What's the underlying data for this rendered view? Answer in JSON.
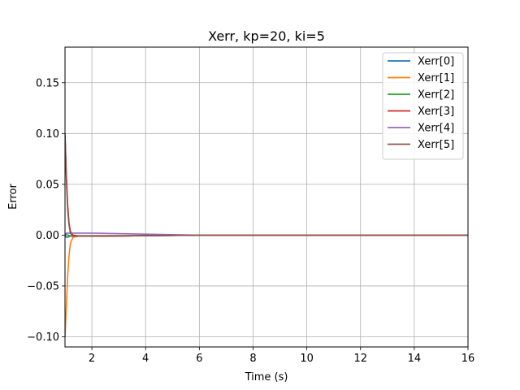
{
  "chart_data": {
    "type": "line",
    "title": "Xerr, kp=20, ki=5",
    "xlabel": "Time (s)",
    "ylabel": "Error",
    "xlim": [
      1,
      16
    ],
    "ylim": [
      -0.11,
      0.185
    ],
    "xticks": [
      2,
      4,
      6,
      8,
      10,
      12,
      14,
      16
    ],
    "xtick_labels": [
      "2",
      "4",
      "6",
      "8",
      "10",
      "12",
      "14",
      "16"
    ],
    "yticks": [
      -0.1,
      -0.05,
      0.0,
      0.05,
      0.1,
      0.15
    ],
    "ytick_labels": [
      "−0.10",
      "−0.05",
      "0.00",
      "0.05",
      "0.10",
      "0.15"
    ],
    "grid": true,
    "legend_position": "top-right",
    "series": [
      {
        "name": "Xerr[0]",
        "color": "#1f77b4",
        "x": [
          1.0,
          1.05,
          1.1,
          1.2,
          1.3,
          1.5,
          2,
          4,
          6,
          8,
          16
        ],
        "y": [
          0.0,
          -0.002,
          -0.002,
          -0.001,
          -0.001,
          -0.001,
          -0.001,
          -0.0005,
          0.0,
          0.0,
          0.0
        ]
      },
      {
        "name": "Xerr[1]",
        "color": "#ff7f0e",
        "x": [
          1.0,
          1.05,
          1.1,
          1.15,
          1.2,
          1.3,
          1.5,
          2,
          4,
          6,
          16
        ],
        "y": [
          -0.1,
          -0.07,
          -0.04,
          -0.02,
          -0.008,
          -0.002,
          -0.001,
          -0.001,
          -0.0005,
          0.0,
          0.0
        ]
      },
      {
        "name": "Xerr[2]",
        "color": "#2ca02c",
        "x": [
          1.0,
          1.05,
          1.1,
          1.2,
          1.3,
          1.5,
          2,
          4,
          6,
          16
        ],
        "y": [
          0.0,
          0.001,
          0.0,
          -0.001,
          -0.001,
          -0.001,
          -0.001,
          -0.0005,
          0.0,
          0.0
        ]
      },
      {
        "name": "Xerr[3]",
        "color": "#d62728",
        "x": [
          1.0,
          1.05,
          1.1,
          1.15,
          1.2,
          1.3,
          1.5,
          2,
          4,
          6,
          16
        ],
        "y": [
          0.1,
          0.06,
          0.03,
          0.012,
          0.004,
          0.0,
          -0.001,
          -0.001,
          -0.0005,
          0.0,
          0.0
        ]
      },
      {
        "name": "Xerr[4]",
        "color": "#9467bd",
        "x": [
          1.0,
          1.05,
          1.1,
          1.2,
          1.3,
          1.5,
          2,
          4,
          6,
          16
        ],
        "y": [
          0.0,
          0.002,
          0.002,
          0.002,
          0.002,
          0.002,
          0.002,
          0.001,
          0.0,
          0.0
        ]
      },
      {
        "name": "Xerr[5]",
        "color": "#8c564b",
        "x": [
          1.0,
          1.05,
          1.1,
          1.15,
          1.2,
          1.3,
          1.5,
          2,
          4,
          6,
          16
        ],
        "y": [
          0.1,
          0.055,
          0.025,
          0.01,
          0.002,
          -0.001,
          -0.001,
          -0.001,
          -0.0005,
          0.0,
          0.0
        ]
      }
    ]
  }
}
